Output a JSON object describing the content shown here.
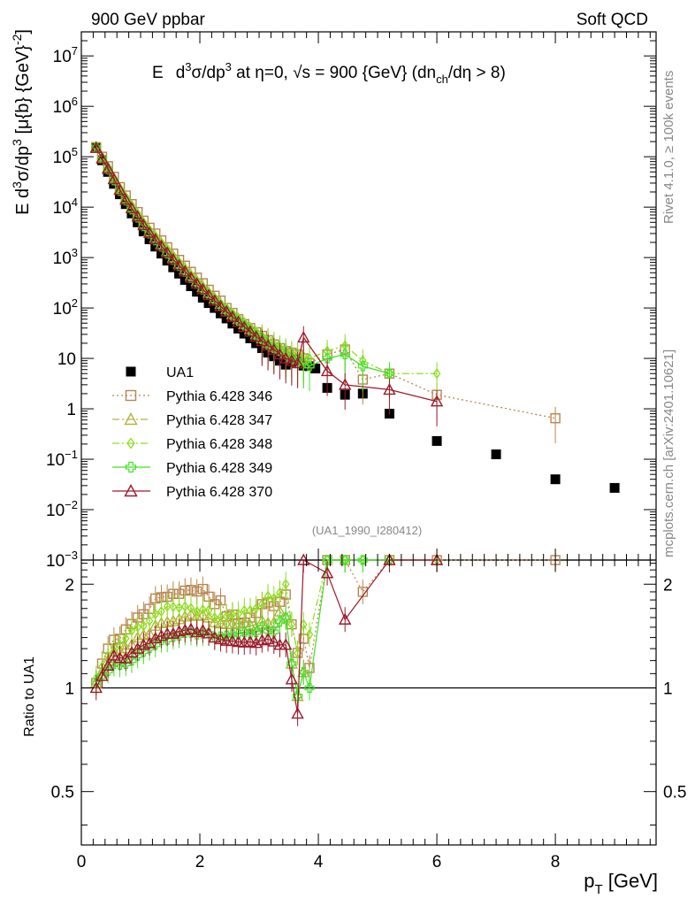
{
  "header": {
    "left": "900 GeV ppbar",
    "right": "Soft QCD"
  },
  "side_labels": {
    "rivet": "Rivet 4.1.0, ≥ 100k events",
    "mcplots": "mcplots.cern.ch [arXiv:2401.10621]"
  },
  "chart_data": {
    "type": "scatter",
    "title": "E d³σ/dp³ at η=0, √s = 900 {GeV} (dn_ch/dη > 8)",
    "title_parts": {
      "a": "E",
      "b": "d",
      "c": "3",
      "d": "σ/dp",
      "e": "3",
      "f": " at η=0, √s = 900 {GeV} (dn",
      "g": "ch",
      "h": "/dη > 8)"
    },
    "analysis_tag": "(UA1_1990_I280412)",
    "ylabel": "E d³σ/dp³ [μ{b} {GeV}⁻²]",
    "ylabel_parts": {
      "a": "E d",
      "b": "3",
      "c": "σ/dp",
      "d": "3",
      "e": " [μ{b} {GeV}",
      "f": "-2",
      "g": "]"
    },
    "xlabel": "p_T [GeV]",
    "xlabel_parts": {
      "a": "p",
      "b": "T",
      "c": " [GeV]"
    },
    "ratio_ylabel": "Ratio to UA1",
    "xlim": [
      0,
      9.7
    ],
    "ylim_log": [
      0.001,
      30000000
    ],
    "ratio_ylim": [
      0.35,
      2.35
    ],
    "x_ticks": [
      {
        "v": 0,
        "label": "0"
      },
      {
        "v": 2,
        "label": "2"
      },
      {
        "v": 4,
        "label": "4"
      },
      {
        "v": 6,
        "label": "6"
      },
      {
        "v": 8,
        "label": "8"
      }
    ],
    "y_ticks": [
      {
        "e": -3,
        "base": "10",
        "exp": "−3"
      },
      {
        "e": -2,
        "base": "10",
        "exp": "−2"
      },
      {
        "e": -1,
        "base": "10",
        "exp": "−1"
      },
      {
        "e": 0,
        "base": "1",
        "exp": ""
      },
      {
        "e": 1,
        "base": "10",
        "exp": ""
      },
      {
        "e": 2,
        "base": "10",
        "exp": "2"
      },
      {
        "e": 3,
        "base": "10",
        "exp": "3"
      },
      {
        "e": 4,
        "base": "10",
        "exp": "4"
      },
      {
        "e": 5,
        "base": "10",
        "exp": "5"
      },
      {
        "e": 6,
        "base": "10",
        "exp": "6"
      },
      {
        "e": 7,
        "base": "10",
        "exp": "7"
      }
    ],
    "ratio_ticks": [
      {
        "v": 0.5,
        "label": "0.5"
      },
      {
        "v": 1,
        "label": "1"
      },
      {
        "v": 2,
        "label": "2"
      }
    ],
    "legend_position": "middle-left",
    "series": [
      {
        "name": "UA1",
        "color": "#000000",
        "marker": "square-filled",
        "style": "none",
        "x": [
          0.25,
          0.35,
          0.45,
          0.55,
          0.65,
          0.75,
          0.85,
          0.95,
          1.05,
          1.15,
          1.25,
          1.35,
          1.45,
          1.55,
          1.65,
          1.75,
          1.85,
          1.95,
          2.05,
          2.15,
          2.25,
          2.35,
          2.45,
          2.55,
          2.65,
          2.75,
          2.85,
          2.95,
          3.05,
          3.15,
          3.25,
          3.35,
          3.45,
          3.55,
          3.65,
          3.75,
          3.85,
          3.95,
          4.15,
          4.45,
          4.75,
          5.2,
          6.0,
          7.0,
          8.0,
          9.0
        ],
        "y": [
          150000,
          85000,
          50000,
          29000,
          18000,
          11500,
          7500,
          5000,
          3300,
          2300,
          1650,
          1200,
          870,
          640,
          480,
          360,
          270,
          210,
          160,
          125,
          100,
          78,
          62,
          49,
          39,
          31,
          25,
          20,
          16,
          13,
          11,
          9,
          7.5,
          8.5,
          9.5,
          7.2,
          7.0,
          6.3,
          2.6,
          1.9,
          2.0,
          0.8,
          0.23,
          0.125,
          0.04,
          0.027
        ]
      },
      {
        "name": "Pythia 6.428 346",
        "color": "#b8864e",
        "marker": "square-open",
        "style": "dotted",
        "x": [
          0.25,
          0.35,
          0.45,
          0.55,
          0.65,
          0.75,
          0.85,
          0.95,
          1.05,
          1.15,
          1.25,
          1.35,
          1.45,
          1.55,
          1.65,
          1.75,
          1.85,
          1.95,
          2.05,
          2.15,
          2.25,
          2.35,
          2.45,
          2.55,
          2.65,
          2.75,
          2.85,
          2.95,
          3.05,
          3.15,
          3.25,
          3.35,
          3.45,
          3.55,
          3.65,
          3.75,
          3.85,
          4.15,
          4.45,
          4.75,
          5.2,
          6.0,
          8.0
        ],
        "y": [
          155000,
          100000,
          65000,
          40000,
          25000,
          17000,
          11500,
          8000,
          5400,
          3900,
          3000,
          2200,
          1600,
          1200,
          900,
          690,
          520,
          400,
          310,
          230,
          175,
          140,
          100,
          80,
          60,
          48,
          40,
          33,
          28,
          23,
          19,
          16,
          14,
          13,
          12,
          10,
          8,
          12,
          15,
          3.8,
          5.0,
          1.9,
          0.65
        ]
      },
      {
        "name": "Pythia 6.428 347",
        "color": "#b4b43c",
        "marker": "triangle-open",
        "style": "dashdot",
        "x": [
          0.25,
          0.35,
          0.45,
          0.55,
          0.65,
          0.75,
          0.85,
          0.95,
          1.05,
          1.15,
          1.25,
          1.35,
          1.45,
          1.55,
          1.65,
          1.75,
          1.85,
          1.95,
          2.05,
          2.15,
          2.25,
          2.35,
          2.45,
          2.55,
          2.65,
          2.75,
          2.85,
          2.95,
          3.05,
          3.15,
          3.25,
          3.35,
          3.45,
          3.55,
          3.65,
          3.75
        ],
        "y": [
          155000,
          95000,
          60000,
          37000,
          23000,
          15000,
          10000,
          7000,
          4700,
          3300,
          2500,
          1850,
          1350,
          1000,
          760,
          580,
          440,
          340,
          260,
          200,
          155,
          120,
          95,
          75,
          60,
          48,
          38,
          30,
          25,
          20,
          17,
          15,
          12,
          10,
          9,
          8
        ]
      },
      {
        "name": "Pythia 6.428 348",
        "color": "#8ede1e",
        "marker": "diamond-open",
        "style": "dashdot",
        "x": [
          0.25,
          0.35,
          0.45,
          0.55,
          0.65,
          0.75,
          0.85,
          0.95,
          1.05,
          1.15,
          1.25,
          1.35,
          1.45,
          1.55,
          1.65,
          1.75,
          1.85,
          1.95,
          2.05,
          2.15,
          2.25,
          2.35,
          2.45,
          2.55,
          2.65,
          2.75,
          2.85,
          2.95,
          3.05,
          3.15,
          3.25,
          3.35,
          3.45,
          3.55,
          3.65,
          3.75,
          3.85,
          4.15,
          4.45,
          4.75,
          5.2,
          6.0
        ],
        "y": [
          160000,
          98000,
          62000,
          38000,
          24000,
          16000,
          11000,
          7500,
          5000,
          3600,
          2700,
          2000,
          1500,
          1100,
          820,
          620,
          460,
          350,
          270,
          210,
          160,
          125,
          100,
          80,
          64,
          52,
          42,
          34,
          28,
          24,
          20,
          17,
          15,
          13,
          12,
          11,
          10,
          14,
          18,
          9,
          5,
          5
        ]
      },
      {
        "name": "Pythia 6.428 349",
        "color": "#44e028",
        "marker": "cross-open",
        "style": "solid",
        "x": [
          0.25,
          0.35,
          0.45,
          0.55,
          0.65,
          0.75,
          0.85,
          0.95,
          1.05,
          1.15,
          1.25,
          1.35,
          1.45,
          1.55,
          1.65,
          1.75,
          1.85,
          1.95,
          2.05,
          2.15,
          2.25,
          2.35,
          2.45,
          2.55,
          2.65,
          2.75,
          2.85,
          2.95,
          3.05,
          3.15,
          3.25,
          3.35,
          3.45,
          3.55,
          3.65,
          3.75,
          3.85,
          4.15,
          4.45,
          4.75,
          5.2
        ],
        "y": [
          155000,
          92000,
          56000,
          34000,
          21000,
          13500,
          9000,
          6200,
          4200,
          3000,
          2200,
          1650,
          1200,
          900,
          680,
          520,
          390,
          300,
          230,
          180,
          140,
          110,
          88,
          70,
          56,
          45,
          36,
          29,
          24,
          19,
          16,
          14,
          12,
          10,
          9,
          8,
          7,
          10,
          12,
          7,
          5
        ]
      },
      {
        "name": "Pythia 6.428 370",
        "color": "#9b1b2b",
        "marker": "triangle-open",
        "style": "solid",
        "x": [
          0.25,
          0.35,
          0.45,
          0.55,
          0.65,
          0.75,
          0.85,
          0.95,
          1.05,
          1.15,
          1.25,
          1.35,
          1.45,
          1.55,
          1.65,
          1.75,
          1.85,
          1.95,
          2.05,
          2.15,
          2.25,
          2.35,
          2.45,
          2.55,
          2.65,
          2.75,
          2.85,
          2.95,
          3.05,
          3.15,
          3.25,
          3.35,
          3.45,
          3.55,
          3.65,
          3.75,
          4.15,
          4.45,
          5.2,
          6.0
        ],
        "y": [
          150000,
          92000,
          58000,
          36000,
          22000,
          14000,
          9500,
          6500,
          4400,
          3100,
          2300,
          1700,
          1250,
          920,
          700,
          530,
          400,
          305,
          235,
          180,
          140,
          108,
          85,
          67,
          53,
          42,
          34,
          27,
          22,
          18,
          15,
          12,
          10,
          9,
          8,
          26,
          5.6,
          3.0,
          2.4,
          1.4
        ]
      }
    ]
  }
}
